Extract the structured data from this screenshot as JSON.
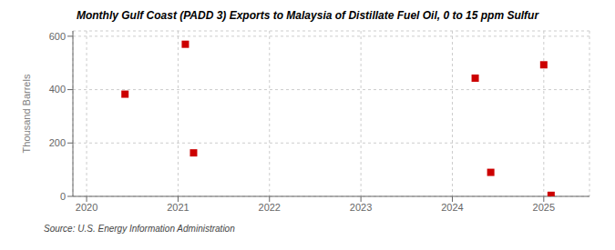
{
  "chart_data": {
    "type": "scatter",
    "title": "Monthly Gulf Coast (PADD 3) Exports to Malaysia of Distillate Fuel Oil, 0 to 15 ppm Sulfur",
    "ylabel": "Thousand Barrels",
    "annotations": [
      "Source: U.S. Energy Information Administration"
    ],
    "x": [
      2020.42,
      2021.08,
      2021.17,
      2024.25,
      2024.42,
      2025.0,
      2025.08
    ],
    "values": [
      383,
      570,
      163,
      443,
      90,
      493,
      4
    ],
    "color": "#cc0000",
    "marker": "square",
    "xlim": [
      2019.85,
      2025.5
    ],
    "ylim": [
      0,
      620
    ],
    "xticks": [
      2020,
      2021,
      2022,
      2023,
      2024,
      2025
    ],
    "yticks": [
      0,
      200,
      400,
      600
    ],
    "grid": true
  }
}
